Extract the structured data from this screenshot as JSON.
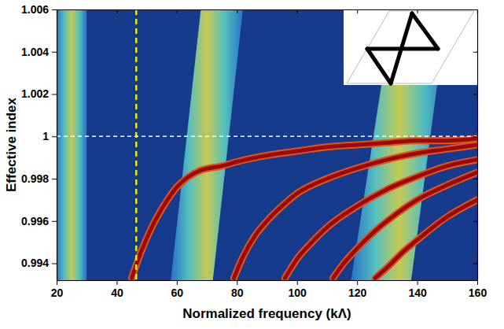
{
  "chart_data": {
    "type": "line",
    "x_label": "Normalized frequency (kΛ)",
    "y_label": "Effective index",
    "xlim": [
      20,
      160
    ],
    "xticks": [
      20,
      40,
      60,
      80,
      100,
      120,
      140,
      160
    ],
    "ylim": [
      0.9932,
      1.006
    ],
    "yticks": [
      0.994,
      0.996,
      0.998,
      1,
      1.002,
      1.004,
      1.006
    ],
    "grid": false,
    "series": [
      {
        "color": "#9b0a0a",
        "x": [
          45,
          48,
          52,
          56,
          60,
          64,
          68,
          75,
          80,
          90,
          100,
          110,
          120,
          130,
          140,
          150,
          160
        ],
        "values": [
          0.9933,
          0.9945,
          0.9958,
          0.9968,
          0.9976,
          0.9981,
          0.9984,
          0.9986,
          0.9988,
          0.9991,
          0.9993,
          0.9995,
          0.9996,
          0.9997,
          0.9998,
          0.9998,
          0.9999
        ]
      },
      {
        "color": "#9b0a0a",
        "x": [
          79,
          82,
          86,
          90,
          95,
          100,
          110,
          120,
          130,
          140,
          150,
          160
        ],
        "values": [
          0.9933,
          0.9943,
          0.9953,
          0.996,
          0.9967,
          0.9973,
          0.998,
          0.9985,
          0.9989,
          0.9992,
          0.9994,
          0.9996
        ]
      },
      {
        "color": "#9b0a0a",
        "x": [
          96,
          100,
          105,
          110,
          120,
          130,
          140,
          150,
          160
        ],
        "values": [
          0.9933,
          0.9942,
          0.995,
          0.9957,
          0.9967,
          0.9975,
          0.9981,
          0.9986,
          0.9989
        ]
      },
      {
        "color": "#9b0a0a",
        "x": [
          112,
          115,
          120,
          125,
          130,
          140,
          150,
          160
        ],
        "values": [
          0.9933,
          0.9939,
          0.9947,
          0.9954,
          0.996,
          0.997,
          0.9977,
          0.9983
        ]
      },
      {
        "color": "#9b0a0a",
        "x": [
          126,
          130,
          135,
          140,
          150,
          160
        ],
        "values": [
          0.9933,
          0.9938,
          0.9945,
          0.9951,
          0.9962,
          0.997
        ]
      }
    ],
    "bands": [
      {
        "bottom": [
          20,
          30
        ],
        "top": [
          20,
          30
        ]
      },
      {
        "bottom": [
          58,
          72
        ],
        "top": [
          68,
          82
        ]
      },
      {
        "bottom": [
          118,
          138
        ],
        "top": [
          132,
          150
        ]
      }
    ],
    "reference_lines": [
      {
        "axis": "x",
        "value": 46.5
      },
      {
        "axis": "y",
        "value": 1
      }
    ]
  }
}
